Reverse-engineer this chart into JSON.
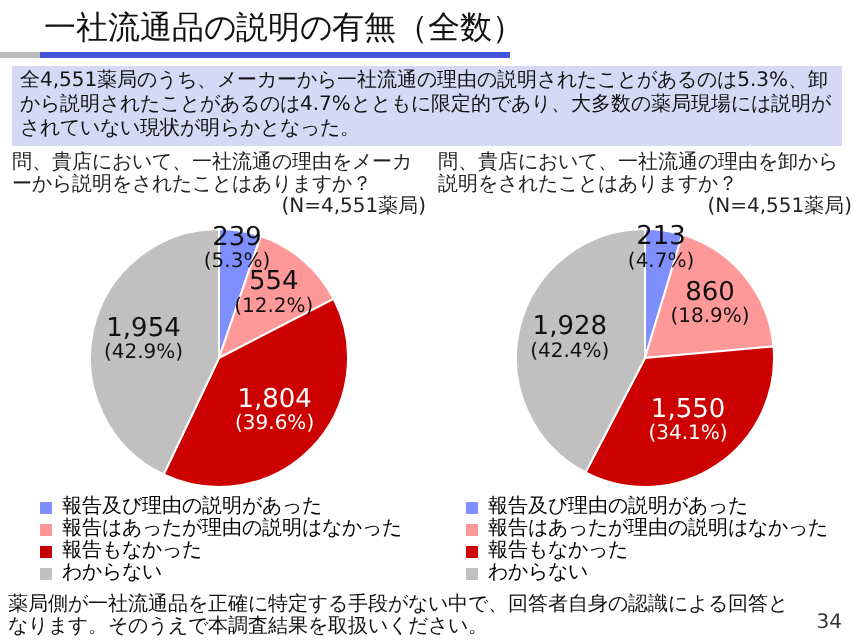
{
  "chart_data": [
    {
      "type": "pie",
      "title": "問、貴店において、一社流通の理由をメーカーから説明をされたことはありますか？",
      "subtitle": "(N=4,551薬局)",
      "annotations": [
        "一社流通品の説明の有無（全数）",
        "全4,551薬局のうち、メーカーから一社流通の理由の説明されたことがあるのは5.3%、卸から説明されたことがあるのは4.7%とともに限定的であり、大多数の薬局現場には説明がされていない現状が明らかとなった。"
      ],
      "categories": [
        "報告及び理由の説明があった",
        "報告はあったが理由の説明はなかった",
        "報告もなかった",
        "わからない"
      ],
      "values": [
        239,
        554,
        1804,
        1954
      ],
      "value_labels": [
        "239\n(5.3%)",
        "554\n(12.2%)",
        "1,804\n(39.6%)",
        "1,954\n(42.9%)"
      ],
      "colors": [
        "#7f8fff",
        "#ff9999",
        "#cc0000",
        "#c0c0c0"
      ],
      "legend": "bottom"
    },
    {
      "type": "pie",
      "title": "問、貴店において、一社流通の理由を卸から説明をされたことはありますか？",
      "subtitle": "(N=4,551薬局)",
      "annotations": [
        "薬局側が一社流通品を正確に特定する手段がない中で、回答者自身の認識による回答となります。そのうえで本調査結果を取扱いください。",
        "34"
      ],
      "categories": [
        "報告及び理由の説明があった",
        "報告はあったが理由の説明はなかった",
        "報告もなかった",
        "わからない"
      ],
      "values": [
        213,
        860,
        1550,
        1928
      ],
      "value_labels": [
        "213\n(4.7%)",
        "860\n(18.9%)",
        "1,550\n(34.1%)",
        "1,928\n(42.4%)"
      ],
      "colors": [
        "#7f8fff",
        "#ff9999",
        "#cc0000",
        "#c0c0c0"
      ],
      "legend": "bottom"
    }
  ]
}
